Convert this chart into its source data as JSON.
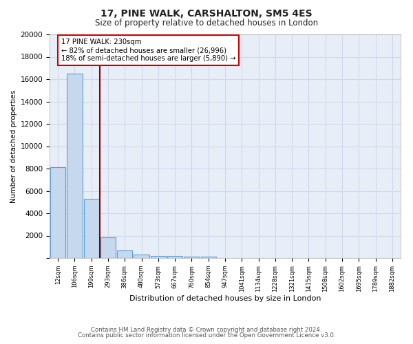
{
  "title1": "17, PINE WALK, CARSHALTON, SM5 4ES",
  "title2": "Size of property relative to detached houses in London",
  "xlabel": "Distribution of detached houses by size in London",
  "ylabel": "Number of detached properties",
  "bar_labels": [
    "12sqm",
    "106sqm",
    "199sqm",
    "293sqm",
    "386sqm",
    "480sqm",
    "573sqm",
    "667sqm",
    "760sqm",
    "854sqm",
    "947sqm",
    "1041sqm",
    "1134sqm",
    "1228sqm",
    "1321sqm",
    "1415sqm",
    "1508sqm",
    "1602sqm",
    "1695sqm",
    "1789sqm",
    "1882sqm"
  ],
  "bar_values": [
    8100,
    16500,
    5300,
    1850,
    700,
    280,
    210,
    180,
    150,
    130,
    0,
    0,
    0,
    0,
    0,
    0,
    0,
    0,
    0,
    0,
    0
  ],
  "bar_color": "#c5d8ee",
  "bar_edge_color": "#5a9fd4",
  "vline_x": 2.5,
  "vline_color": "#8b0000",
  "annotation_text": "17 PINE WALK: 230sqm\n← 82% of detached houses are smaller (26,996)\n18% of semi-detached houses are larger (5,890) →",
  "annotation_box_color": "#ffffff",
  "annotation_box_edge_color": "#cc0000",
  "ylim": [
    0,
    20000
  ],
  "yticks": [
    0,
    2000,
    4000,
    6000,
    8000,
    10000,
    12000,
    14000,
    16000,
    18000,
    20000
  ],
  "background_color": "#e8eef8",
  "grid_color": "#d0d8e8",
  "footer1": "Contains HM Land Registry data © Crown copyright and database right 2024.",
  "footer2": "Contains public sector information licensed under the Open Government Licence v3.0."
}
